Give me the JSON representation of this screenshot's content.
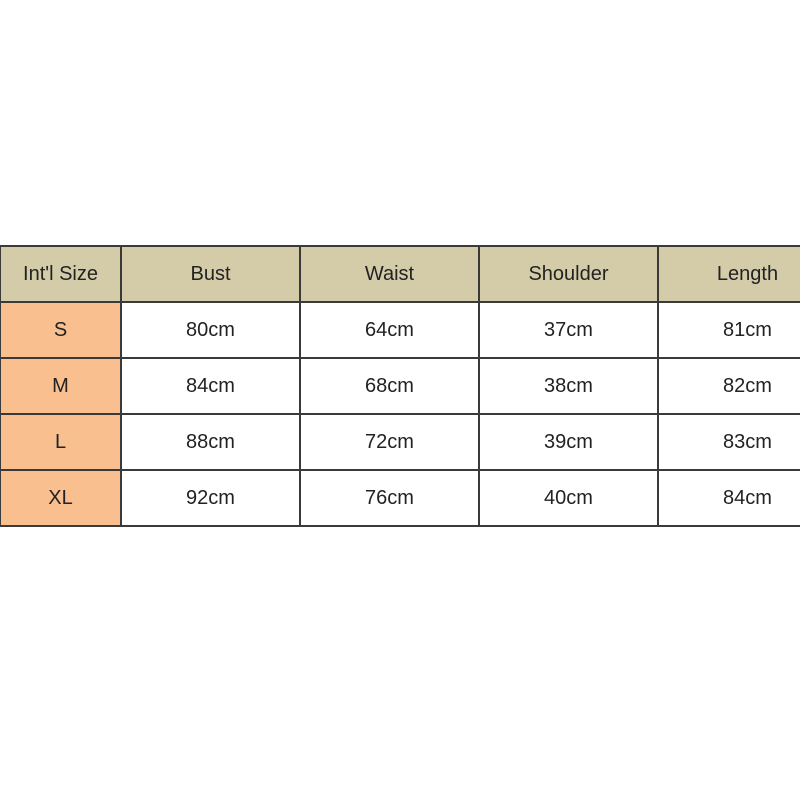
{
  "table": {
    "headers": [
      "Int'l Size",
      "Bust",
      "Waist",
      "Shoulder",
      "Length"
    ],
    "rows": [
      [
        "S",
        "80cm",
        "64cm",
        "37cm",
        "81cm"
      ],
      [
        "M",
        "84cm",
        "68cm",
        "38cm",
        "82cm"
      ],
      [
        "L",
        "88cm",
        "72cm",
        "39cm",
        "83cm"
      ],
      [
        "XL",
        "92cm",
        "76cm",
        "40cm",
        "84cm"
      ]
    ]
  },
  "colors": {
    "header_bg": "#d4cca9",
    "size_column_bg": "#f9bf8f",
    "border": "#3a3a3a"
  }
}
